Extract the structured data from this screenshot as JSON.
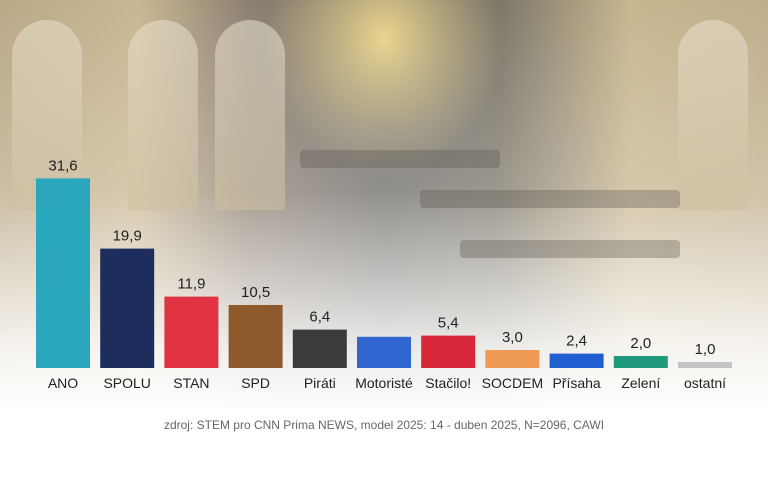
{
  "chart_data": {
    "type": "bar",
    "categories": [
      "ANO",
      "SPOLU",
      "STAN",
      "SPD",
      "Piráti",
      "Motoristé",
      "Stačilo!",
      "SOCDEM",
      "Přísaha",
      "Zelení",
      "ostatní"
    ],
    "values": [
      31.6,
      19.9,
      11.9,
      10.5,
      6.4,
      null,
      5.4,
      3.0,
      2.4,
      2.0,
      1.0
    ],
    "value_labels": [
      "31,6",
      "19,9",
      "11,9",
      "10,5",
      "6,4",
      "",
      "5,4",
      "3,0",
      "2,4",
      "2,0",
      "1,0"
    ],
    "colors": [
      "#2aa6bd",
      "#1d2d5c",
      "#e03240",
      "#8e5a2b",
      "#3b3b3b",
      "#2f66d0",
      "#d7283a",
      "#ee9a55",
      "#1f5fcf",
      "#1f9a7c",
      "#c4c4c4"
    ],
    "ylim": [
      0,
      33
    ],
    "grid": false,
    "legend": "none"
  },
  "source": "zdroj: STEM pro CNN Prima NEWS, model 2025: 14 - duben 2025, N=2096, CAWI"
}
